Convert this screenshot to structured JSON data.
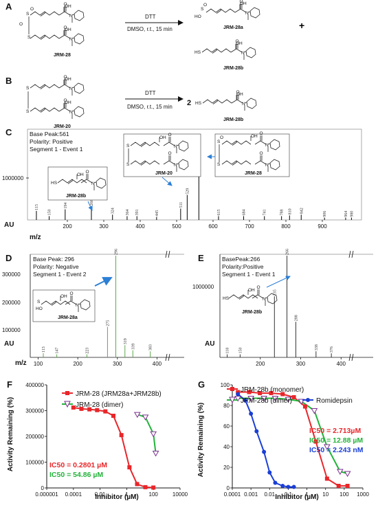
{
  "panels": {
    "A": "A",
    "B": "B",
    "C": "C",
    "D": "D",
    "E": "E",
    "F": "F",
    "G": "G"
  },
  "scheme_a": {
    "reactant": "JRM-28",
    "reagent": "DTT",
    "conditions": "DMSO, r.t., 15 min",
    "product1": "JRM-28a",
    "product2": "JRM-28b",
    "plus": "+"
  },
  "scheme_b": {
    "reactant": "JRM-20",
    "reagent": "DTT",
    "conditions": "DMSO, r.t., 15 min",
    "coefficient": "2",
    "product": "JRM-28b"
  },
  "atoms": {
    "S": "S",
    "O": "O",
    "OH": "OH",
    "N": "N",
    "HS": "HS",
    "HO": "HO",
    "SH": "S"
  },
  "colors": {
    "red": "#e8262a",
    "green": "#22b33a",
    "blue": "#1a3fd6",
    "purple": "#7a2e8e",
    "ms_black": "#000000",
    "ms_green": "#5aa84a",
    "arrow_blue": "#2c7fd6"
  },
  "ms_c": {
    "info": [
      "Base Peak:561",
      "Polarity: Positive",
      "Segment 1 - Event 1"
    ],
    "ylabel": "AU",
    "xlabel": "m/z",
    "ytick": "1000000",
    "xticks": [
      "200",
      "300",
      "400",
      "500",
      "600",
      "700",
      "800",
      "900"
    ],
    "peak_labels": [
      "115",
      "150",
      "194",
      "266",
      "324",
      "364",
      "391",
      "445",
      "511",
      "529",
      "561",
      "615",
      "684",
      "741",
      "788",
      "810",
      "842",
      "906",
      "964",
      "980"
    ],
    "box_labels": [
      "JRM-28b",
      "JRM-20",
      "JRM-28"
    ]
  },
  "ms_d": {
    "info": [
      "Base Peak: 296",
      "Polarity: Negative",
      "Segment 1 - Event 2"
    ],
    "ylabel": "AU",
    "xlabel": "m/z",
    "yticks": [
      "300000",
      "200000",
      "100000"
    ],
    "xticks": [
      "100",
      "200",
      "300",
      "400"
    ],
    "peak_labels": [
      "113",
      "147",
      "223",
      "275",
      "296",
      "319",
      "339",
      "383",
      "977"
    ],
    "box_label": "JRM-28a"
  },
  "ms_e": {
    "info": [
      "BasePeak:266",
      "Polarity:Positive",
      "Segment 1 - Event 1"
    ],
    "ylabel": "AU",
    "ytick": "1000000",
    "xticks": [
      "200",
      "300",
      "400"
    ],
    "peak_labels": [
      "118",
      "150",
      "235",
      "266",
      "288",
      "338",
      "376",
      "974"
    ],
    "box_label": "JRM-28b"
  },
  "chart_data": [
    {
      "type": "line",
      "panel": "F",
      "xlabel": "Inhibitor (µM)",
      "ylabel": "Activity Remaining (%)",
      "xscale": "log",
      "xlim": [
        1e-06,
        10000
      ],
      "ylim": [
        0,
        400000
      ],
      "xticks": [
        "0.000001",
        "0.0001",
        "0.01",
        "1",
        "100",
        "10000"
      ],
      "yticks": [
        "0",
        "100000",
        "200000",
        "300000",
        "400000"
      ],
      "legend_position": "top-right",
      "series": [
        {
          "name": "JRM-28 (JRM28a+JRM28b)",
          "color": "#e8262a",
          "marker": "square",
          "x": [
            0.0001,
            0.0004,
            0.0016,
            0.006,
            0.025,
            0.1,
            0.4,
            1.6,
            6,
            25,
            100
          ],
          "y": [
            312000,
            307000,
            305000,
            302000,
            297000,
            280000,
            205000,
            80000,
            15000,
            3000,
            1500
          ]
        },
        {
          "name": "JRM-28 (dimer)",
          "color": "#22b33a",
          "marker": "triangle-down",
          "marker_color": "#7a2e8e",
          "x": [
            6.25,
            25,
            100,
            150
          ],
          "y": [
            285000,
            275000,
            210000,
            135000
          ]
        }
      ],
      "ic50_labels": [
        "IC50 = 0.2801 µM",
        "IC50 = 54.86 µM"
      ],
      "ic50_values_uM": [
        0.2801,
        54.86
      ]
    },
    {
      "type": "line",
      "panel": "G",
      "xlabel": "Inhibitor (µM)",
      "ylabel": "Activity Remaining (%)",
      "xscale": "log",
      "xlim": [
        0.0001,
        1000
      ],
      "ylim": [
        0,
        100
      ],
      "xticks": [
        "0.0001",
        "0.001",
        "0.01",
        "0.1",
        "1",
        "10",
        "100",
        "1000"
      ],
      "yticks": [
        "0",
        "20",
        "40",
        "60",
        "80",
        "100"
      ],
      "legend_position": "top-left",
      "series": [
        {
          "name": "JRM-28b (monomer)",
          "color": "#e8262a",
          "marker": "square",
          "x": [
            0.0002,
            0.0008,
            0.003,
            0.012,
            0.05,
            0.2,
            0.8,
            3,
            12,
            50,
            150
          ],
          "y": [
            93,
            93,
            92,
            92,
            91,
            88,
            79,
            45,
            9,
            2,
            2
          ]
        },
        {
          "name": "JRM-28b (dimer)",
          "color": "#22b33a",
          "marker": "triangle-down",
          "marker_color": "#7a2e8e",
          "x": [
            0.0002,
            0.001,
            0.005,
            0.02,
            0.1,
            0.5,
            2.5,
            12,
            60,
            150
          ],
          "y": [
            87,
            87,
            87,
            87,
            86,
            84,
            75,
            40,
            16,
            14
          ]
        },
        {
          "name": "Romidepsin",
          "color": "#1a3fd6",
          "marker": "circle",
          "x": [
            0.0002,
            0.0005,
            0.001,
            0.002,
            0.005,
            0.01,
            0.02,
            0.05,
            0.1,
            0.2
          ],
          "y": [
            91,
            85,
            72,
            55,
            35,
            15,
            5,
            2,
            1,
            1
          ]
        }
      ],
      "ic50_labels": [
        "IC50 = 2.713µM",
        "IC50 = 12.88 µM",
        "IC50 = 2.243 nM"
      ],
      "ic50_values": [
        "2.713µM",
        "12.88 µM",
        "2.243 nM"
      ]
    }
  ]
}
